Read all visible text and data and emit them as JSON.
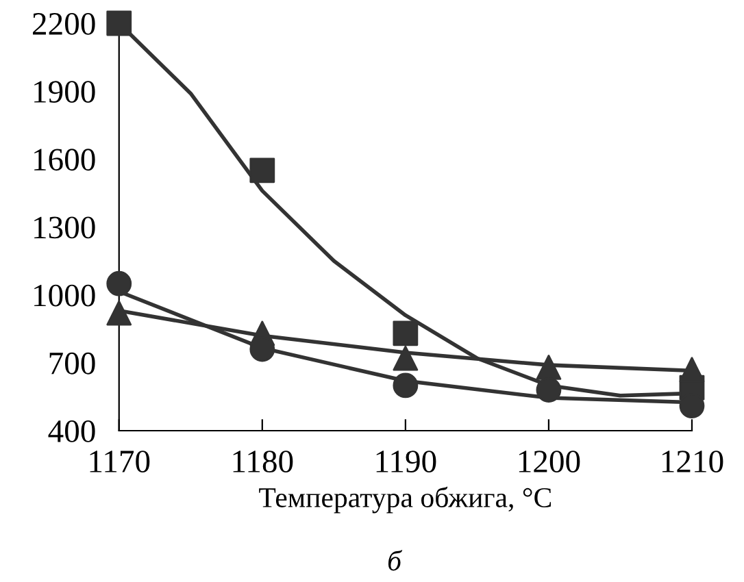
{
  "chart_data": {
    "type": "scatter",
    "xlabel": "Температура обжига, °C",
    "annotations": [
      "б"
    ],
    "xlim": [
      1170,
      1210
    ],
    "xticks": [
      1170,
      1180,
      1190,
      1200,
      1210
    ],
    "ylim": [
      400,
      2200
    ],
    "yticks": [
      400,
      700,
      1000,
      1300,
      1600,
      1900,
      2200
    ],
    "grid": false,
    "legend": false,
    "x": [
      1170,
      1180,
      1190,
      1200,
      1210
    ],
    "series": [
      {
        "marker": "square",
        "color": "#333333",
        "values": [
          2200,
          1550,
          830,
          null,
          590
        ]
      },
      {
        "marker": "triangle",
        "color": "#333333",
        "values": [
          920,
          830,
          720,
          680,
          670
        ]
      },
      {
        "marker": "circle",
        "color": "#333333",
        "values": [
          1050,
          760,
          600,
          580,
          510
        ]
      },
      {
        "type": "line",
        "marker": "none",
        "color": "#333333",
        "x": [
          1170,
          1175,
          1180,
          1185,
          1190,
          1195,
          1200,
          1205,
          1210
        ],
        "values": [
          2200,
          1890,
          1460,
          1150,
          910,
          720,
          600,
          555,
          565
        ]
      },
      {
        "type": "line",
        "marker": "none",
        "color": "#333333",
        "x": [
          1170,
          1180,
          1190,
          1200,
          1210
        ],
        "values": [
          930,
          820,
          745,
          690,
          665
        ]
      },
      {
        "type": "line",
        "marker": "none",
        "color": "#333333",
        "x": [
          1170,
          1180,
          1190,
          1200,
          1210
        ],
        "values": [
          1015,
          765,
          620,
          545,
          525
        ]
      }
    ]
  }
}
